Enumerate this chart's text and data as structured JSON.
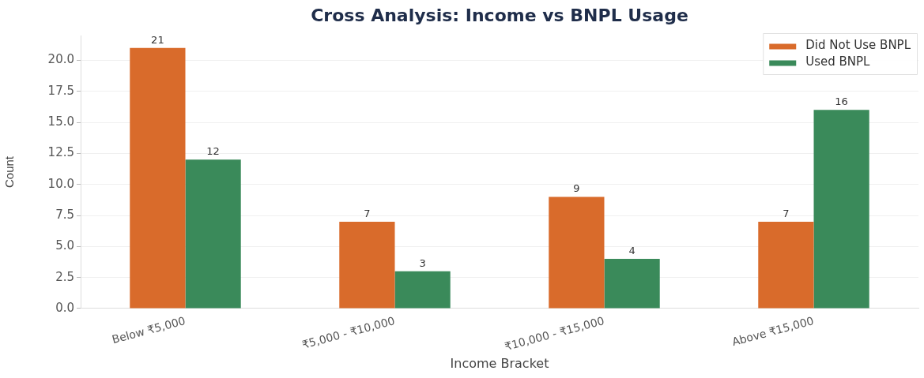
{
  "chart_data": {
    "type": "bar",
    "title": "Cross Analysis: Income vs BNPL Usage",
    "xlabel": "Income Bracket",
    "ylabel": "Count",
    "categories": [
      "Below ₹5,000",
      "₹5,000 - ₹10,000",
      "₹10,000 - ₹15,000",
      "Above ₹15,000"
    ],
    "series": [
      {
        "name": "Did Not Use BNPL",
        "color": "#d96b2b",
        "values": [
          21,
          7,
          9,
          7
        ]
      },
      {
        "name": "Used BNPL",
        "color": "#3a8a5a",
        "values": [
          12,
          3,
          4,
          16
        ]
      }
    ],
    "ylim": [
      0,
      22
    ],
    "yticks": [
      {
        "value": 0,
        "label": "0.0"
      },
      {
        "value": 2.5,
        "label": "2.5"
      },
      {
        "value": 5,
        "label": "5.0"
      },
      {
        "value": 7.5,
        "label": "7.5"
      },
      {
        "value": 10,
        "label": "10.0"
      },
      {
        "value": 12.5,
        "label": "12.5"
      },
      {
        "value": 15,
        "label": "15.0"
      },
      {
        "value": 17.5,
        "label": "17.5"
      },
      {
        "value": 20,
        "label": "20.0"
      }
    ],
    "grid": "y",
    "legend": "top right",
    "data_labels": true
  }
}
